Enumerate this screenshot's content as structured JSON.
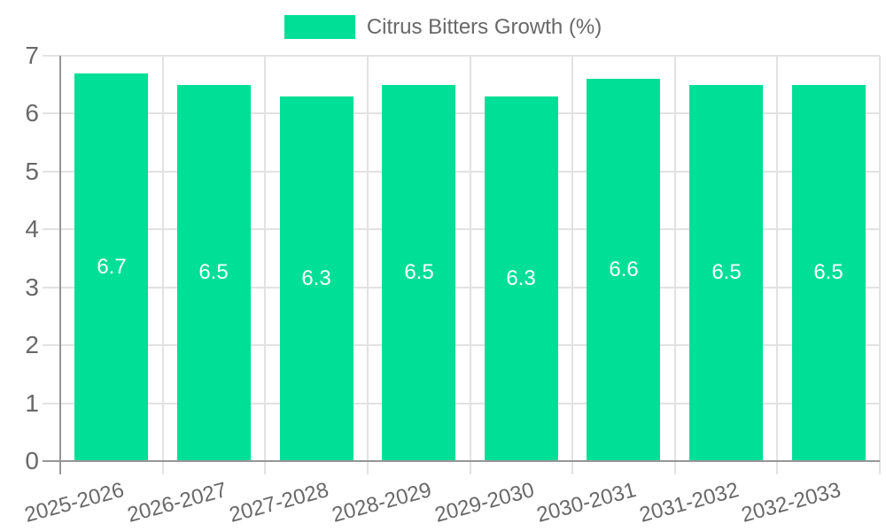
{
  "chart_data": {
    "type": "bar",
    "title": "Citrus Bitters Growth (%)",
    "legend": {
      "label": "Citrus Bitters Growth (%)",
      "position": "top"
    },
    "categories": [
      "2025-2026",
      "2026-2027",
      "2027-2028",
      "2028-2029",
      "2029-2030",
      "2030-2031",
      "2031-2032",
      "2032-2033"
    ],
    "series": [
      {
        "name": "Citrus Bitters Growth (%)",
        "values": [
          6.7,
          6.5,
          6.3,
          6.5,
          6.3,
          6.6,
          6.5,
          6.5
        ]
      }
    ],
    "value_label_decimals": 1,
    "xlabel": "",
    "ylabel": "",
    "ylim": [
      0,
      7
    ],
    "y_ticks": [
      0,
      1,
      2,
      3,
      4,
      5,
      6,
      7
    ],
    "grid": true,
    "x_tick_rotation_deg": -15,
    "colors": {
      "bar": "#00DF96",
      "value_label": "#FFFFFF",
      "axis_line": "#969696",
      "gridline": "#E2E2E2",
      "tick_label": "#686868",
      "background": "#FFFFFF"
    }
  }
}
